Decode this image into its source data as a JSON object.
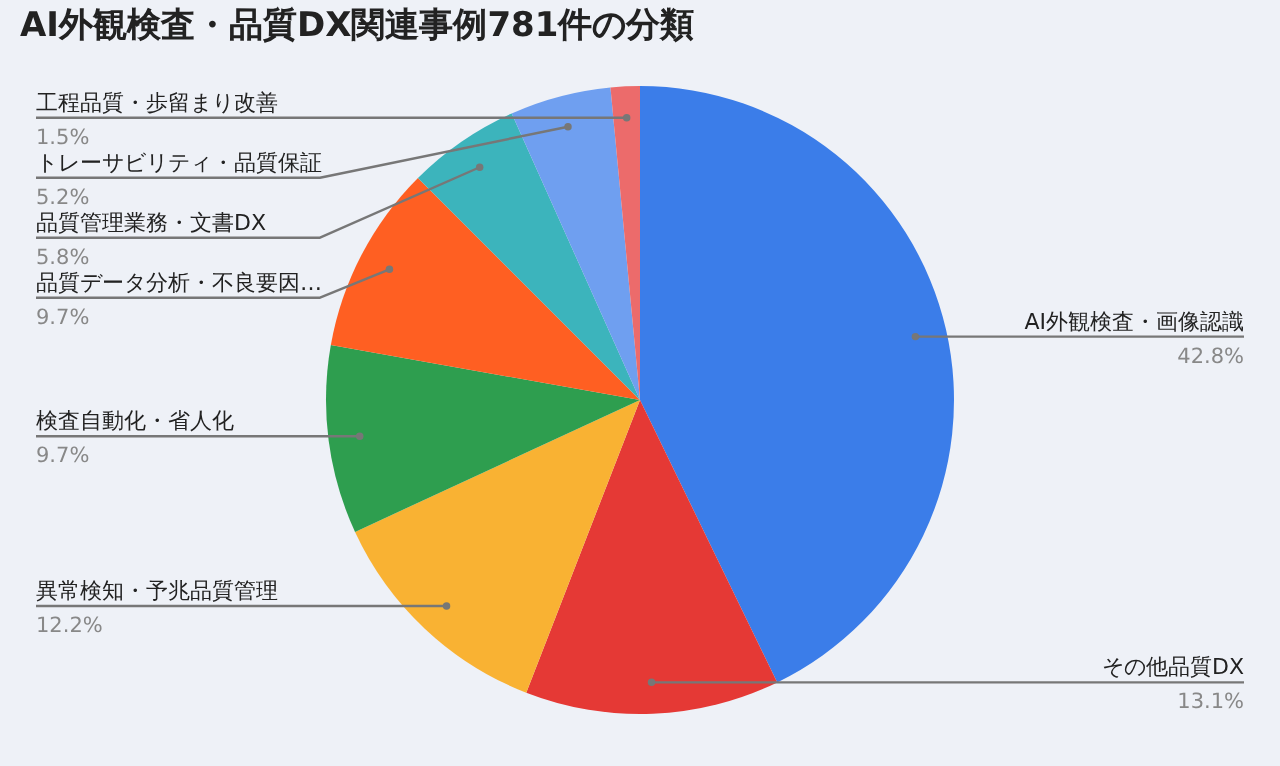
{
  "chart_data": {
    "type": "pie",
    "title": "AI外観検査・品質DX関連事例781件の分類",
    "categories": [
      "AI外観検査・画像認識",
      "その他品質DX",
      "異常検知・予兆品質管理",
      "検査自動化・省人化",
      "品質データ分析・不良要因…",
      "品質管理業務・文書DX",
      "トレーサビリティ・品質保証",
      "工程品質・歩留まり改善"
    ],
    "values": [
      42.8,
      13.1,
      12.2,
      9.7,
      9.7,
      5.8,
      5.2,
      1.5
    ],
    "value_labels": [
      "42.8%",
      "13.1%",
      "12.2%",
      "9.7%",
      "9.7%",
      "5.8%",
      "5.2%",
      "1.5%"
    ],
    "colors": [
      "#3b7de9",
      "#e53935",
      "#f9b233",
      "#2e9e4f",
      "#ff5f22",
      "#3cb4bc",
      "#6f9ff0",
      "#ec6b6b"
    ]
  }
}
